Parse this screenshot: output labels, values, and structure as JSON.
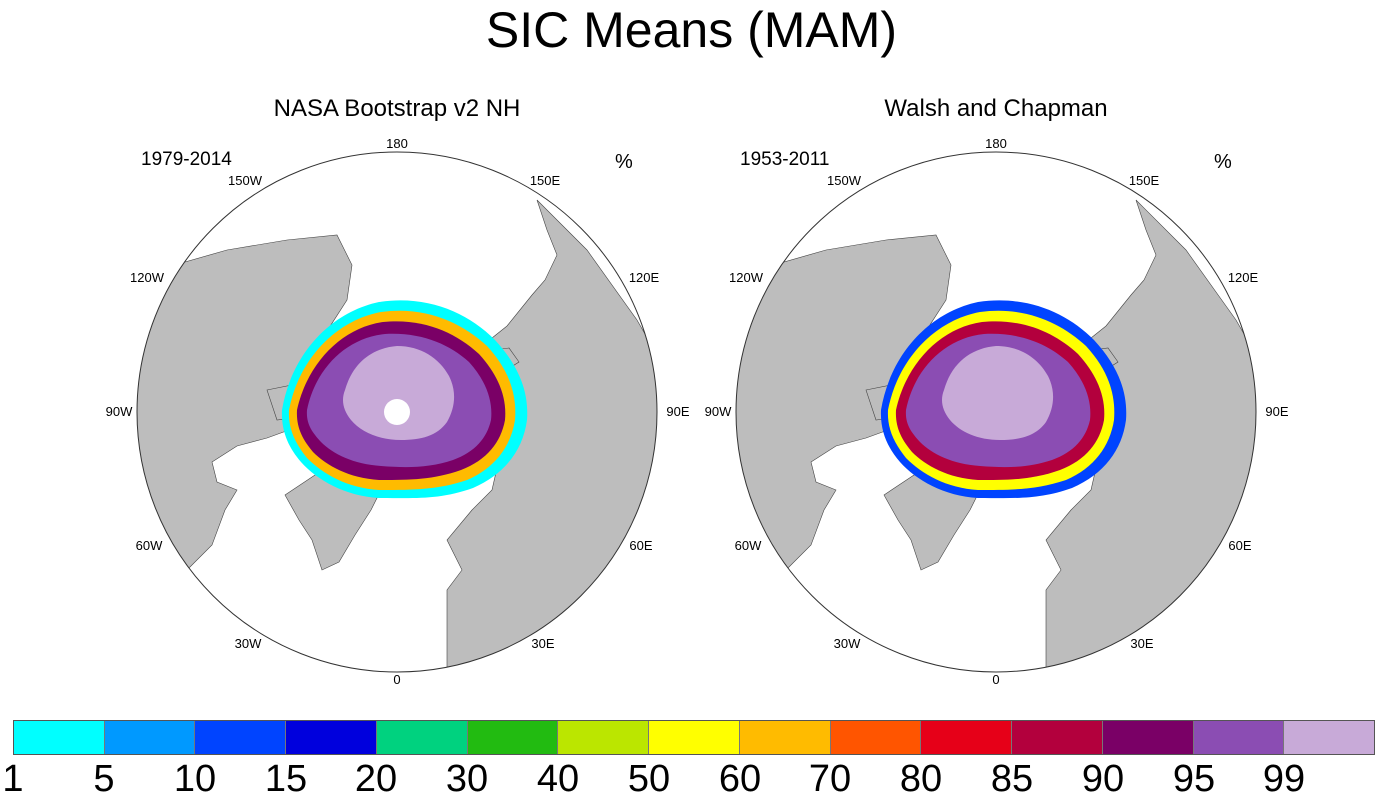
{
  "title": "SIC Means (MAM)",
  "panels": [
    {
      "title": "NASA Bootstrap v2 NH",
      "period": "1979-2014",
      "unit": "%",
      "lon_labels": [
        "180",
        "150E",
        "120E",
        "90E",
        "60E",
        "30E",
        "0",
        "30W",
        "60W",
        "90W",
        "120W",
        "150W"
      ]
    },
    {
      "title": "Walsh and Chapman",
      "period": "1953-2011",
      "unit": "%",
      "lon_labels": [
        "180",
        "150E",
        "120E",
        "90E",
        "60E",
        "30E",
        "0",
        "30W",
        "60W",
        "90W",
        "120W",
        "150W"
      ]
    }
  ],
  "colorbar": {
    "labels": [
      "1",
      "5",
      "10",
      "15",
      "20",
      "30",
      "40",
      "50",
      "60",
      "70",
      "80",
      "85",
      "90",
      "95",
      "99"
    ],
    "colors": [
      "#00ffff",
      "#0099ff",
      "#0044ff",
      "#0000dd",
      "#00d27f",
      "#22bb11",
      "#bbe600",
      "#ffff00",
      "#ffbb00",
      "#ff5500",
      "#e60018",
      "#b3003d",
      "#7a0066",
      "#8b4db3",
      "#c8aad8"
    ]
  },
  "map_colors": {
    "land": "#bdbdbd",
    "ocean": "#ffffff",
    "coast": "#444444"
  }
}
